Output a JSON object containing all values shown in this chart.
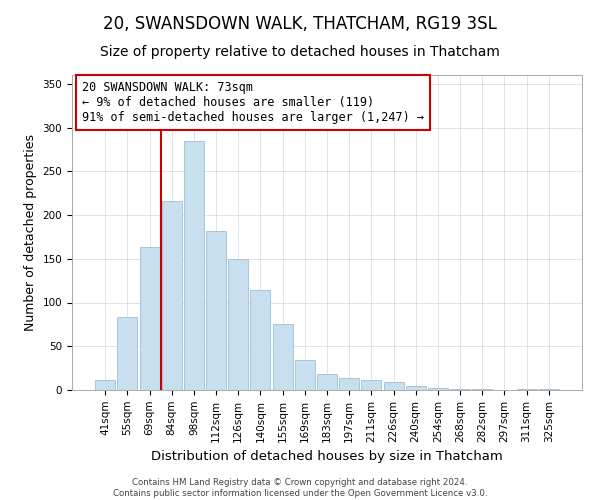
{
  "title": "20, SWANSDOWN WALK, THATCHAM, RG19 3SL",
  "subtitle": "Size of property relative to detached houses in Thatcham",
  "xlabel": "Distribution of detached houses by size in Thatcham",
  "ylabel": "Number of detached properties",
  "bar_labels": [
    "41sqm",
    "55sqm",
    "69sqm",
    "84sqm",
    "98sqm",
    "112sqm",
    "126sqm",
    "140sqm",
    "155sqm",
    "169sqm",
    "183sqm",
    "197sqm",
    "211sqm",
    "226sqm",
    "240sqm",
    "254sqm",
    "268sqm",
    "282sqm",
    "297sqm",
    "311sqm",
    "325sqm"
  ],
  "bar_values": [
    11,
    84,
    163,
    216,
    285,
    182,
    150,
    114,
    75,
    34,
    18,
    14,
    11,
    9,
    5,
    2,
    1,
    1,
    0,
    1,
    1
  ],
  "bar_color": "#c8dff0",
  "bar_edge_color": "#a0bfd8",
  "vline_x_index": 2,
  "vline_color": "#cc0000",
  "annotation_title": "20 SWANSDOWN WALK: 73sqm",
  "annotation_line1": "← 9% of detached houses are smaller (119)",
  "annotation_line2": "91% of semi-detached houses are larger (1,247) →",
  "ylim": [
    0,
    360
  ],
  "yticks": [
    0,
    50,
    100,
    150,
    200,
    250,
    300,
    350
  ],
  "footer_line1": "Contains HM Land Registry data © Crown copyright and database right 2024.",
  "footer_line2": "Contains public sector information licensed under the Open Government Licence v3.0.",
  "title_fontsize": 12,
  "subtitle_fontsize": 10,
  "tick_fontsize": 7.5,
  "ylabel_fontsize": 9,
  "xlabel_fontsize": 9.5
}
